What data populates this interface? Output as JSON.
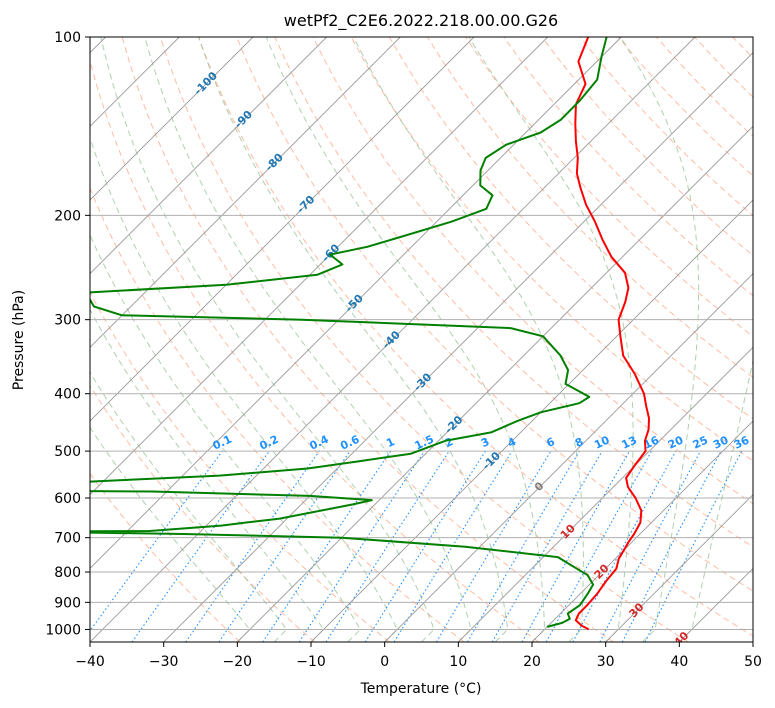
{
  "chart_data": {
    "type": "line",
    "title": "wetPf2_C2E6.2022.218.00.00.G26",
    "xlabel": "Temperature (°C)",
    "ylabel": "Pressure (hPa)",
    "xlim": [
      -40,
      50
    ],
    "ylim_hpa": [
      1050,
      100
    ],
    "y_scale": "log",
    "skew": "skew-T log-p diagram",
    "grid": true,
    "x_ticks": [
      -40,
      -30,
      -20,
      -10,
      0,
      10,
      20,
      30,
      40,
      50
    ],
    "x_tick_labels": [
      "−40",
      "−30",
      "−20",
      "−10",
      "0",
      "10",
      "20",
      "30",
      "40",
      "50"
    ],
    "y_ticks": [
      1000,
      900,
      800,
      700,
      600,
      500,
      400,
      300,
      200,
      100
    ],
    "y_tick_labels": [
      "1000",
      "900",
      "800",
      "700",
      "600",
      "500",
      "400",
      "300",
      "200",
      "100"
    ],
    "colors": {
      "temperature": "#ff0000",
      "dewpoint": "#008000",
      "dry_adiabat": "#ffa07a",
      "moist_adiabat": "#8fbc8f",
      "mixing_ratio": "#1e90ff",
      "isotherm": "#999999",
      "isotherm_label": "#1f77b4",
      "isotherm_label_warm": "#d62728"
    },
    "isotherm_labels_cold": [
      {
        "text": "-100",
        "t": -100,
        "p": 120
      },
      {
        "text": "-90",
        "t": -90,
        "p": 138
      },
      {
        "text": "-80",
        "t": -80,
        "p": 163
      },
      {
        "text": "-70",
        "t": -70,
        "p": 192
      },
      {
        "text": "-60",
        "t": -60,
        "p": 232
      },
      {
        "text": "-50",
        "t": -50,
        "p": 282
      },
      {
        "text": "-40",
        "t": -40,
        "p": 325
      },
      {
        "text": "-30",
        "t": -30,
        "p": 383
      },
      {
        "text": "-20",
        "t": -20,
        "p": 452
      },
      {
        "text": "-10",
        "t": -10,
        "p": 520
      }
    ],
    "isotherm_labels_warm": [
      {
        "text": "0",
        "t": 0,
        "p": 575
      },
      {
        "text": "10",
        "t": 10,
        "p": 685
      },
      {
        "text": "20",
        "t": 20,
        "p": 800
      },
      {
        "text": "30",
        "t": 30,
        "p": 930
      },
      {
        "text": "40",
        "t": 40,
        "p": 1040
      }
    ],
    "mixing_ratio_labels": [
      "0.1",
      "0.2",
      "0.4",
      "0.6",
      "1",
      "1.5",
      "2",
      "3",
      "4",
      "6",
      "8",
      "10",
      "13",
      "16",
      "20",
      "25",
      "30",
      "36"
    ],
    "series": [
      {
        "name": "",
        "role": "temperature",
        "points": [
          [
            26,
            1000
          ],
          [
            24.5,
            985
          ],
          [
            23,
            965
          ],
          [
            22.5,
            940
          ],
          [
            22.5,
            910
          ],
          [
            22.3,
            870
          ],
          [
            21.8,
            830
          ],
          [
            21.5,
            790
          ],
          [
            20.5,
            760
          ],
          [
            20,
            735
          ],
          [
            19.5,
            710
          ],
          [
            19.2,
            690
          ],
          [
            18.5,
            660
          ],
          [
            17,
            630
          ],
          [
            14.5,
            600
          ],
          [
            12,
            575
          ],
          [
            10.5,
            555
          ],
          [
            10,
            530
          ],
          [
            9.5,
            500
          ],
          [
            8,
            480
          ],
          [
            7,
            460
          ],
          [
            5.5,
            440
          ],
          [
            3.5,
            420
          ],
          [
            1.5,
            400
          ],
          [
            -2.5,
            370
          ],
          [
            -6.5,
            345
          ],
          [
            -9.5,
            320
          ],
          [
            -12,
            300
          ],
          [
            -13.5,
            280
          ],
          [
            -15,
            265
          ],
          [
            -17.5,
            250
          ],
          [
            -21.5,
            235
          ],
          [
            -25,
            220
          ],
          [
            -28.5,
            205
          ],
          [
            -32,
            192
          ],
          [
            -35,
            180
          ],
          [
            -37.5,
            170
          ],
          [
            -39.5,
            160
          ],
          [
            -42,
            150
          ],
          [
            -44.5,
            140
          ],
          [
            -47,
            130
          ],
          [
            -48.5,
            120
          ],
          [
            -52.5,
            110
          ],
          [
            -54.5,
            100
          ]
        ]
      },
      {
        "name": "",
        "role": "dewpoint",
        "points": [
          [
            20,
            990
          ],
          [
            21.5,
            975
          ],
          [
            22,
            960
          ],
          [
            21,
            940
          ],
          [
            21.5,
            910
          ],
          [
            21,
            870
          ],
          [
            20.5,
            840
          ],
          [
            18.5,
            810
          ],
          [
            15,
            780
          ],
          [
            12,
            755
          ],
          [
            -2,
            725
          ],
          [
            -20,
            700
          ],
          [
            -42,
            690
          ],
          [
            -60,
            685
          ],
          [
            -85,
            685
          ],
          [
            -47,
            682
          ],
          [
            -38,
            668
          ],
          [
            -35,
            660
          ],
          [
            -31,
            650
          ],
          [
            -23,
            615
          ],
          [
            -21,
            605
          ],
          [
            -30,
            595
          ],
          [
            -52,
            585
          ],
          [
            -85,
            582
          ],
          [
            -80,
            578
          ],
          [
            -58,
            560
          ],
          [
            -45,
            550
          ],
          [
            -34,
            535
          ],
          [
            -28,
            520
          ],
          [
            -22,
            505
          ],
          [
            -19,
            480
          ],
          [
            -14,
            465
          ],
          [
            -12,
            445
          ],
          [
            -10,
            430
          ],
          [
            -6,
            415
          ],
          [
            -5.5,
            405
          ],
          [
            -10.5,
            385
          ],
          [
            -12,
            365
          ],
          [
            -15,
            345
          ],
          [
            -20,
            320
          ],
          [
            -25.5,
            310
          ],
          [
            -55,
            300
          ],
          [
            -80,
            295
          ],
          [
            -85,
            285
          ],
          [
            -88,
            270
          ],
          [
            -70,
            262
          ],
          [
            -59,
            252
          ],
          [
            -57,
            242
          ],
          [
            -60,
            233
          ],
          [
            -56,
            226
          ],
          [
            -53,
            218
          ],
          [
            -48,
            205
          ],
          [
            -45,
            195
          ],
          [
            -46,
            185
          ],
          [
            -49,
            178
          ],
          [
            -51,
            168
          ],
          [
            -52,
            160
          ],
          [
            -51,
            152
          ],
          [
            -48,
            145
          ],
          [
            -47,
            138
          ],
          [
            -47,
            128
          ],
          [
            -47.5,
            118
          ],
          [
            -50,
            108
          ],
          [
            -52,
            100
          ]
        ]
      }
    ]
  }
}
